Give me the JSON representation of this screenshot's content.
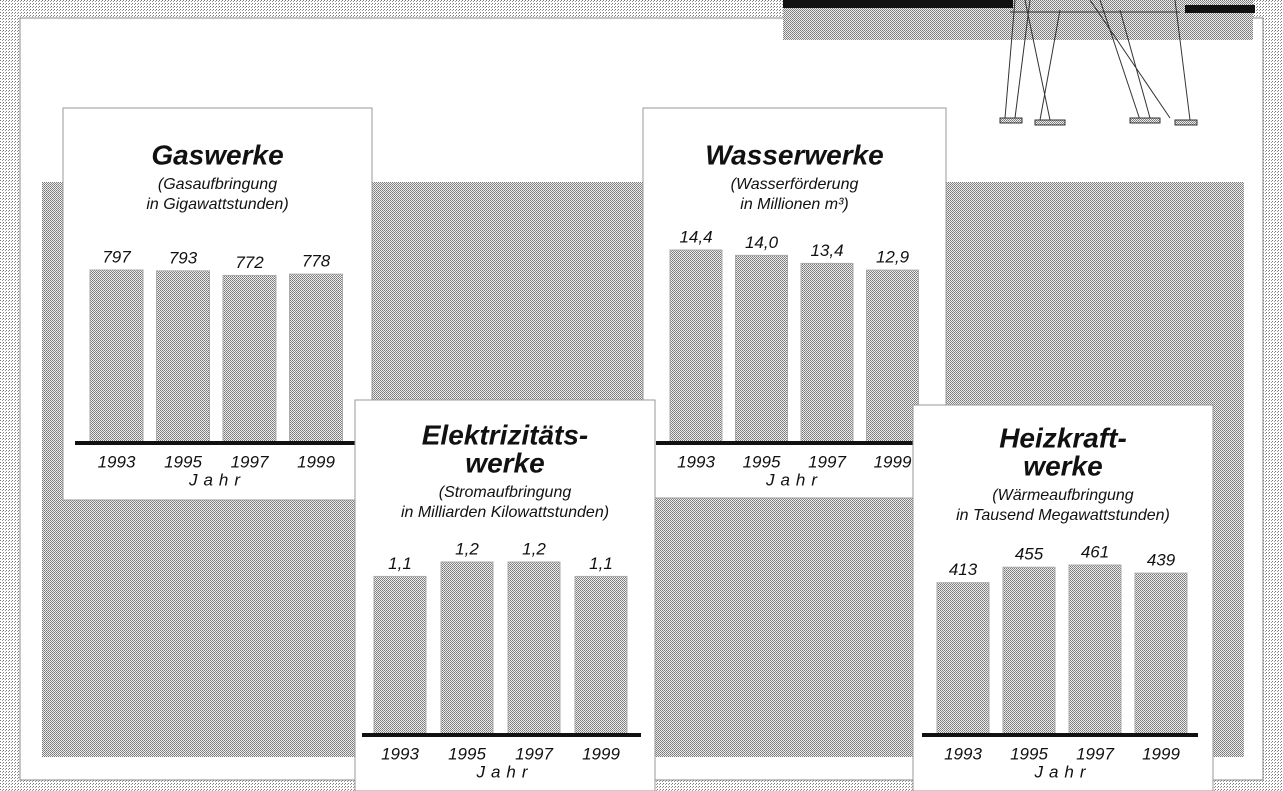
{
  "chart_data": [
    {
      "type": "bar",
      "title": [
        "Gaswerke"
      ],
      "subtitle": [
        "(Gasaufbringung",
        "in Gigawattstunden)"
      ],
      "categories": [
        "1993",
        "1995",
        "1997",
        "1999"
      ],
      "values": [
        797,
        793,
        772,
        778
      ],
      "color": "#c8c8c8",
      "x_label": "Jahr"
    },
    {
      "type": "bar",
      "title": [
        "Wasserwerke"
      ],
      "subtitle": [
        "(Wasserförderung",
        "in Millionen m³)"
      ],
      "categories": [
        "1993",
        "1995",
        "1997",
        "1999"
      ],
      "values": [
        14.4,
        14.0,
        13.4,
        12.9
      ],
      "value_labels": [
        "14,4",
        "14,0",
        "13,4",
        "12,9"
      ],
      "color": "#c8c8c8",
      "x_label": "Jahr"
    },
    {
      "type": "bar",
      "title": [
        "Elektrizitäts-",
        "werke"
      ],
      "subtitle": [
        "(Stromaufbringung",
        "in Milliarden Kilowattstunden)"
      ],
      "categories": [
        "1993",
        "1995",
        "1997",
        "1999"
      ],
      "values": [
        1.1,
        1.2,
        1.2,
        1.1
      ],
      "value_labels": [
        "1,1",
        "1,2",
        "1,2",
        "1,1"
      ],
      "color": "#c8c8c8",
      "x_label": "Jahr"
    },
    {
      "type": "bar",
      "title": [
        "Heizkraft-",
        "werke"
      ],
      "subtitle": [
        "(Wärmeaufbringung",
        "in Tausend Megawattstunden)"
      ],
      "categories": [
        "1993",
        "1995",
        "1997",
        "1999"
      ],
      "values": [
        413,
        455,
        461,
        439
      ],
      "color": "#c8c8c8",
      "x_label": "Jahr"
    }
  ]
}
